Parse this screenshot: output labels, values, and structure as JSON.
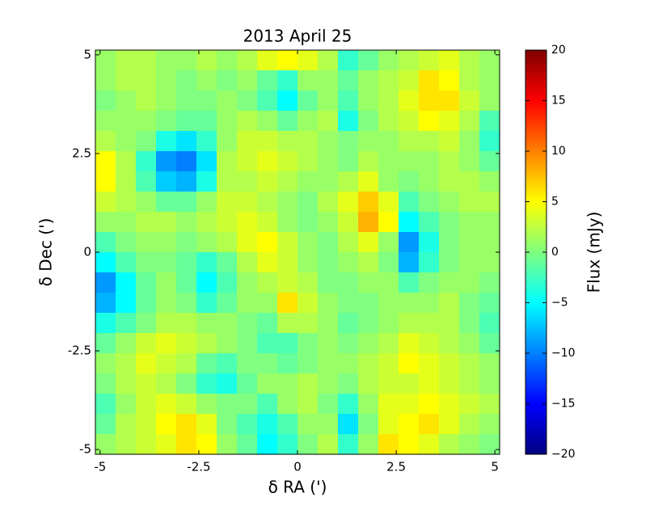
{
  "chart_data": {
    "type": "heatmap",
    "title": "2013 April 25",
    "xlabel": "δ RA (')",
    "ylabel": "δ Dec (')",
    "colorbar_label": "Flux (mJy)",
    "colormap": "jet",
    "xlim": [
      -5.12,
      5.12
    ],
    "ylim": [
      -5.12,
      5.12
    ],
    "xticks": [
      -5,
      -2.5,
      0,
      2.5,
      5
    ],
    "yticks": [
      -5,
      -2.5,
      0,
      2.5,
      5
    ],
    "clim": [
      -20,
      20
    ],
    "cticks": [
      {
        "value": -20,
        "label": "−20"
      },
      {
        "value": -15,
        "label": "−15"
      },
      {
        "value": -10,
        "label": "−10"
      },
      {
        "value": -5,
        "label": "−5"
      },
      0,
      5,
      10,
      15,
      20
    ],
    "x": [
      -4.864,
      -4.352,
      -3.84,
      -3.328,
      -2.816,
      -2.304,
      -1.792,
      -1.28,
      -0.768,
      -0.256,
      0.256,
      0.768,
      1.28,
      1.792,
      2.304,
      2.816,
      3.328,
      3.84,
      4.352,
      4.864
    ],
    "y": [
      4.864,
      4.352,
      3.84,
      3.328,
      2.816,
      2.304,
      1.792,
      1.28,
      0.768,
      0.256,
      -0.256,
      -0.768,
      -1.28,
      -1.792,
      -2.304,
      -2.816,
      -3.328,
      -3.84,
      -4.352,
      -4.864
    ],
    "z": [
      [
        1,
        2,
        2,
        1,
        1,
        2,
        1,
        2,
        4,
        5,
        4,
        2,
        -3,
        -1,
        1,
        2,
        3,
        4,
        2,
        1
      ],
      [
        1,
        2,
        2,
        1,
        0,
        1,
        0,
        1,
        -1,
        -3,
        1,
        1,
        -1,
        1,
        2,
        3,
        6,
        5,
        2,
        1
      ],
      [
        0,
        1,
        2,
        1,
        0,
        0,
        1,
        0,
        -2,
        -5,
        -1,
        1,
        -2,
        1,
        2,
        4,
        6,
        6,
        3,
        1
      ],
      [
        1,
        1,
        1,
        0,
        -1,
        -1,
        1,
        2,
        1,
        -1,
        1,
        2,
        -4,
        0,
        2,
        3,
        5,
        4,
        2,
        -2
      ],
      [
        2,
        1,
        0,
        -4,
        -6,
        -3,
        1,
        3,
        3,
        2,
        2,
        1,
        0,
        1,
        1,
        2,
        2,
        3,
        1,
        -3
      ],
      [
        5,
        2,
        -3,
        -9,
        -10,
        -6,
        2,
        3,
        4,
        3,
        2,
        1,
        0,
        2,
        1,
        1,
        1,
        2,
        1,
        -1
      ],
      [
        5,
        2,
        -2,
        -7,
        -8,
        -4,
        2,
        2,
        3,
        2,
        1,
        1,
        2,
        4,
        1,
        0,
        1,
        2,
        2,
        1
      ],
      [
        3,
        2,
        1,
        -1,
        -1,
        1,
        3,
        3,
        2,
        1,
        0,
        2,
        4,
        7,
        4,
        -2,
        0,
        1,
        2,
        2
      ],
      [
        1,
        1,
        2,
        2,
        1,
        2,
        3,
        4,
        3,
        1,
        0,
        1,
        3,
        8,
        5,
        -5,
        -2,
        0,
        1,
        1
      ],
      [
        -2,
        0,
        1,
        1,
        0,
        1,
        2,
        4,
        5,
        3,
        1,
        0,
        2,
        4,
        1,
        -9,
        -4,
        0,
        1,
        1
      ],
      [
        -5,
        -2,
        0,
        0,
        -1,
        -3,
        -1,
        2,
        4,
        3,
        1,
        0,
        1,
        2,
        0,
        -8,
        -3,
        0,
        1,
        1
      ],
      [
        -9,
        -5,
        -1,
        1,
        -1,
        -5,
        -2,
        1,
        2,
        3,
        2,
        0,
        0,
        1,
        1,
        -2,
        0,
        1,
        1,
        0
      ],
      [
        -8,
        -5,
        -1,
        1,
        0,
        -3,
        -1,
        1,
        1,
        6,
        3,
        1,
        0,
        0,
        1,
        1,
        1,
        2,
        0,
        -1
      ],
      [
        -4,
        -2,
        0,
        2,
        2,
        1,
        1,
        0,
        -1,
        2,
        2,
        1,
        -1,
        0,
        1,
        2,
        2,
        2,
        0,
        -2
      ],
      [
        -1,
        1,
        3,
        4,
        3,
        2,
        1,
        0,
        -2,
        -2,
        0,
        1,
        0,
        1,
        2,
        4,
        3,
        2,
        1,
        -1
      ],
      [
        1,
        2,
        4,
        3,
        2,
        -1,
        -2,
        0,
        0,
        -1,
        0,
        1,
        1,
        2,
        3,
        5,
        4,
        3,
        2,
        1
      ],
      [
        0,
        2,
        3,
        2,
        0,
        -3,
        -4,
        -1,
        1,
        1,
        2,
        1,
        0,
        2,
        3,
        3,
        4,
        3,
        2,
        1
      ],
      [
        -2,
        1,
        3,
        4,
        3,
        1,
        0,
        0,
        -2,
        1,
        2,
        0,
        -3,
        1,
        4,
        4,
        5,
        4,
        3,
        2
      ],
      [
        -1,
        2,
        3,
        5,
        6,
        4,
        0,
        -2,
        -4,
        -2,
        1,
        1,
        -6,
        0,
        4,
        5,
        6,
        4,
        2,
        1
      ],
      [
        1,
        2,
        3,
        4,
        6,
        5,
        1,
        -1,
        -5,
        -3,
        0,
        2,
        -3,
        1,
        6,
        5,
        4,
        2,
        1,
        0
      ]
    ]
  }
}
